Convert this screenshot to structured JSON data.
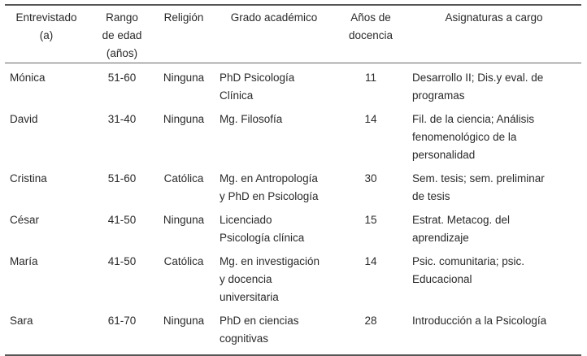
{
  "table": {
    "headers": [
      "Entrevistado\n(a)",
      "Rango\nde edad\n(años)",
      "Religión",
      "Grado académico",
      "Años de\ndocencia",
      "Asignaturas a cargo"
    ],
    "rows": [
      [
        "Mónica",
        "51-60",
        "Ninguna",
        "PhD Psicología\nClínica",
        "11",
        "Desarrollo II; Dis.y eval. de\nprogramas"
      ],
      [
        "David",
        "31-40",
        "Ninguna",
        "Mg. Filosofía",
        "14",
        "Fil. de la ciencia; Análisis\nfenomenológico de la\npersonalidad"
      ],
      [
        "Cristina",
        "51-60",
        "Católica",
        "Mg. en Antropología\ny PhD en Psicología",
        "30",
        "Sem. tesis; sem. preliminar\nde tesis"
      ],
      [
        "César",
        "41-50",
        "Ninguna",
        "Licenciado\nPsicología clínica",
        "15",
        "Estrat. Metacog. del\naprendizaje"
      ],
      [
        "María",
        "41-50",
        "Católica",
        "Mg. en investigación\ny docencia\nuniversitaria",
        "14",
        "Psic. comunitaria; psic.\nEducacional"
      ],
      [
        "Sara",
        "61-70",
        "Ninguna",
        "PhD en ciencias\ncognitivas",
        "28",
        "Introducción a la Psicología"
      ]
    ]
  }
}
